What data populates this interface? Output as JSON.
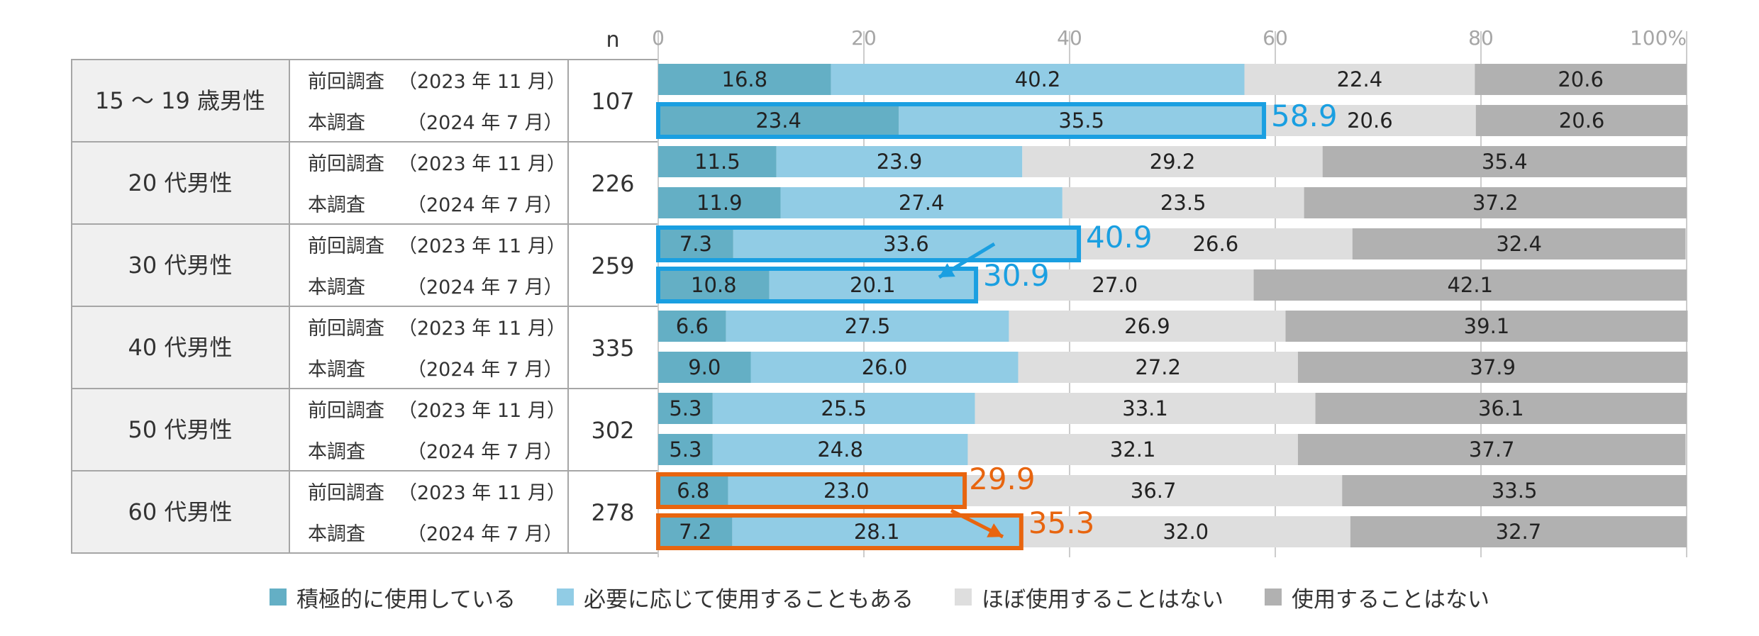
{
  "n_header": "n",
  "rows": [
    {
      "group": "15 ～ 19 歳男性",
      "n": "107"
    },
    {
      "group": "20 代男性",
      "n": "226"
    },
    {
      "group": "30 代男性",
      "n": "259"
    },
    {
      "group": "40 代男性",
      "n": "335"
    },
    {
      "group": "50 代男性",
      "n": "302"
    },
    {
      "group": "60 代男性",
      "n": "278"
    }
  ],
  "survey_labels": {
    "prev_name": "前回調査",
    "prev_date": "（2023 年 11 月）",
    "curr_name": "本調査",
    "curr_date": "（2024 年 7 月）"
  },
  "legend": [
    {
      "label": "積極的に使用している",
      "color": "#64afc5"
    },
    {
      "label": "必要に応じて使用することもある",
      "color": "#91cce5"
    },
    {
      "label": "ほぼ使用することはない",
      "color": "#dedede"
    },
    {
      "label": "使用することはない",
      "color": "#b1b1b1"
    }
  ],
  "highlights": {
    "blue_color": "#1a9fe1",
    "orange_color": "#e8650f",
    "age15_curr_total": "58.9",
    "age30_prev_total": "40.9",
    "age30_curr_total": "30.9",
    "age60_prev_total": "29.9",
    "age60_curr_total": "35.3"
  },
  "chart_data": {
    "type": "bar",
    "orientation": "horizontal",
    "stacked": true,
    "xlim": [
      0,
      100
    ],
    "x_ticks": [
      "0",
      "20",
      "40",
      "60",
      "80",
      "100%"
    ],
    "grid": true,
    "legend_position": "bottom",
    "categories": [
      "15 ～ 19 歳男性 前回調査（2023 年 11 月）",
      "15 ～ 19 歳男性 本調査（2024 年 7 月）",
      "20 代男性 前回調査（2023 年 11 月）",
      "20 代男性 本調査（2024 年 7 月）",
      "30 代男性 前回調査（2023 年 11 月）",
      "30 代男性 本調査（2024 年 7 月）",
      "40 代男性 前回調査（2023 年 11 月）",
      "40 代男性 本調査（2024 年 7 月）",
      "50 代男性 前回調査（2023 年 11 月）",
      "50 代男性 本調査（2024 年 7 月）",
      "60 代男性 前回調査（2023 年 11 月）",
      "60 代男性 本調査（2024 年 7 月）"
    ],
    "series": [
      {
        "name": "積極的に使用している",
        "values": [
          16.8,
          23.4,
          11.5,
          11.9,
          7.3,
          10.8,
          6.6,
          9.0,
          5.3,
          5.3,
          6.8,
          7.2
        ]
      },
      {
        "name": "必要に応じて使用することもある",
        "values": [
          40.2,
          35.5,
          23.9,
          27.4,
          33.6,
          20.1,
          27.5,
          26.0,
          25.5,
          24.8,
          23.0,
          28.1
        ]
      },
      {
        "name": "ほぼ使用することはない",
        "values": [
          22.4,
          20.6,
          29.2,
          23.5,
          26.6,
          27.0,
          26.9,
          27.2,
          33.1,
          32.1,
          36.7,
          32.0
        ]
      },
      {
        "name": "使用することはない",
        "values": [
          20.6,
          20.6,
          35.4,
          37.2,
          32.4,
          42.1,
          39.1,
          37.9,
          36.1,
          37.7,
          33.5,
          32.7
        ]
      }
    ]
  }
}
